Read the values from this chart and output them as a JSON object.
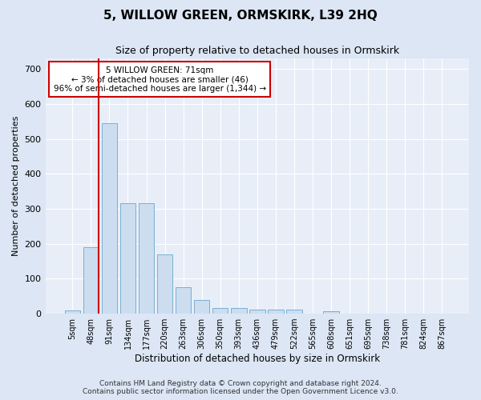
{
  "title": "5, WILLOW GREEN, ORMSKIRK, L39 2HQ",
  "subtitle": "Size of property relative to detached houses in Ormskirk",
  "xlabel": "Distribution of detached houses by size in Ormskirk",
  "ylabel": "Number of detached properties",
  "bar_labels": [
    "5sqm",
    "48sqm",
    "91sqm",
    "134sqm",
    "177sqm",
    "220sqm",
    "263sqm",
    "306sqm",
    "350sqm",
    "393sqm",
    "436sqm",
    "479sqm",
    "522sqm",
    "565sqm",
    "608sqm",
    "651sqm",
    "695sqm",
    "738sqm",
    "781sqm",
    "824sqm",
    "867sqm"
  ],
  "bar_values": [
    9,
    190,
    545,
    317,
    317,
    170,
    75,
    40,
    17,
    17,
    11,
    11,
    11,
    0,
    7,
    0,
    0,
    0,
    0,
    0,
    0
  ],
  "bar_color": "#ccddf0",
  "bar_edge_color": "#7bafd4",
  "vline_color": "#cc0000",
  "annotation_text": "5 WILLOW GREEN: 71sqm\n← 3% of detached houses are smaller (46)\n96% of semi-detached houses are larger (1,344) →",
  "annotation_box_color": "#ffffff",
  "annotation_box_edge": "#cc0000",
  "ylim": [
    0,
    730
  ],
  "yticks": [
    0,
    100,
    200,
    300,
    400,
    500,
    600,
    700
  ],
  "footer_line1": "Contains HM Land Registry data © Crown copyright and database right 2024.",
  "footer_line2": "Contains public sector information licensed under the Open Government Licence v3.0.",
  "bg_color": "#dce6f5",
  "plot_bg_color": "#e8eef8"
}
